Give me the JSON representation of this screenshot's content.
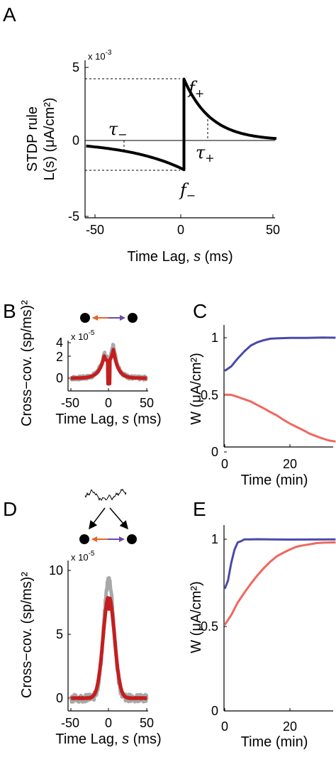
{
  "chart_data": [
    {
      "panel": "A",
      "type": "line",
      "xlabel_text": "Time Lag, ",
      "xlabel_var": "s",
      "xlabel_unit": " (ms)",
      "ylabel_line1": "STDP rule",
      "ylabel_line2": "L(s) (μA/cm²)",
      "multiplier_base": "x 10",
      "multiplier_exp": "-3",
      "xlim": [
        -55,
        50
      ],
      "ylim": [
        -5,
        5
      ],
      "xticks": [
        "-50",
        "0",
        "50"
      ],
      "yticks": [
        "-5",
        "0",
        "5"
      ],
      "f_plus": 4.2,
      "f_minus": -2.0,
      "tau_plus": 15,
      "tau_minus": -33,
      "annotations": {
        "tau_minus_sym": "τ",
        "tau_minus_sub": "−",
        "tau_plus_sym": "τ",
        "tau_plus_sub": "+",
        "f_plus_sym": "f",
        "f_plus_sub": "+",
        "f_minus_sym": "f",
        "f_minus_sub": "−"
      }
    },
    {
      "panel": "B",
      "type": "line",
      "xlabel_text": "Time Lag, ",
      "xlabel_var": "s",
      "xlabel_unit": " (ms)",
      "ylabel": "Cross−cov. (sp/ms)²",
      "multiplier_base": "x 10",
      "multiplier_exp": "-5",
      "xlim": [
        -50,
        50
      ],
      "ylim": [
        -0.8,
        4
      ],
      "xticks": [
        "-50",
        "0",
        "50"
      ],
      "yticks": [
        "0",
        "2",
        "4"
      ],
      "series": [
        {
          "role": "simulation",
          "color": "#a8a8a8",
          "peaks": [
            {
              "x": -5,
              "y": 1.9
            },
            {
              "x": 5,
              "y": 2.8
            }
          ],
          "trough": -0.4
        },
        {
          "role": "theory",
          "color": "#c41e1e",
          "peaks": [
            {
              "x": -5,
              "y": 1.7
            },
            {
              "x": 5,
              "y": 2.3
            }
          ],
          "trough": -0.5
        }
      ]
    },
    {
      "panel": "C",
      "type": "line",
      "xlabel": "Time (min)",
      "ylabel": "W (μA/cm²)",
      "xlim": [
        0,
        34
      ],
      "ylim": [
        0,
        1.05
      ],
      "xticks": [
        "0",
        "20"
      ],
      "yticks": [
        "0",
        "0.5",
        "1"
      ],
      "series": [
        {
          "color": "#4a4aa8",
          "x": [
            0,
            2,
            4,
            6,
            8,
            10,
            12,
            14,
            16,
            20,
            25,
            30,
            34
          ],
          "y": [
            0.71,
            0.75,
            0.82,
            0.88,
            0.93,
            0.96,
            0.98,
            0.99,
            0.995,
            1.0,
            1.0,
            1.0,
            1.0
          ]
        },
        {
          "color": "#f0675e",
          "x": [
            0,
            2,
            4,
            6,
            8,
            10,
            12,
            14,
            16,
            18,
            20,
            22,
            24,
            26,
            28,
            30,
            32,
            34
          ],
          "y": [
            0.5,
            0.5,
            0.48,
            0.46,
            0.44,
            0.41,
            0.38,
            0.35,
            0.32,
            0.28,
            0.25,
            0.22,
            0.19,
            0.16,
            0.14,
            0.12,
            0.1,
            0.09
          ]
        }
      ]
    },
    {
      "panel": "D",
      "type": "line",
      "xlabel_text": "Time Lag, ",
      "xlabel_var": "s",
      "xlabel_unit": " (ms)",
      "ylabel": "Cross−cov. (sp/ms)²",
      "multiplier_base": "x 10",
      "multiplier_exp": "-5",
      "xlim": [
        -50,
        50
      ],
      "ylim": [
        -1,
        10
      ],
      "xticks": [
        "-50",
        "0",
        "50"
      ],
      "yticks": [
        "0",
        "5",
        "10"
      ],
      "series": [
        {
          "role": "simulation",
          "color": "#a8a8a8",
          "peak": 9.3
        },
        {
          "role": "theory",
          "color": "#c41e1e",
          "peaks": [
            {
              "x": -2,
              "y": 7.8
            },
            {
              "x": 3,
              "y": 8.0
            }
          ],
          "dip": 7.0
        }
      ]
    },
    {
      "panel": "E",
      "type": "line",
      "xlabel": "Time (min)",
      "ylabel": "W (μA/cm²)",
      "xlim": [
        0,
        34
      ],
      "ylim": [
        0,
        1.05
      ],
      "xticks": [
        "0",
        "20"
      ],
      "yticks": [
        "0",
        "0.5",
        "1"
      ],
      "series": [
        {
          "color": "#4a4aa8",
          "x": [
            0,
            1,
            2,
            3,
            4,
            5,
            6,
            8,
            10,
            20,
            34
          ],
          "y": [
            0.71,
            0.76,
            0.86,
            0.94,
            0.98,
            0.99,
            1.0,
            1.0,
            1.0,
            1.0,
            1.0
          ]
        },
        {
          "color": "#f0675e",
          "x": [
            0,
            2,
            4,
            6,
            8,
            10,
            12,
            14,
            16,
            18,
            20,
            22,
            24,
            26,
            28,
            30,
            34
          ],
          "y": [
            0.5,
            0.56,
            0.63,
            0.69,
            0.74,
            0.79,
            0.83,
            0.87,
            0.9,
            0.92,
            0.94,
            0.955,
            0.965,
            0.97,
            0.975,
            0.98,
            0.98
          ]
        }
      ]
    }
  ],
  "panels": {
    "a": "A",
    "b": "B",
    "c": "C",
    "d": "D",
    "e": "E"
  },
  "colors": {
    "blue": "#4a4aa8",
    "orange": "#f0675e",
    "red": "#c41e1e",
    "gray": "#a8a8a8",
    "arrow_orange": "#e8632a",
    "arrow_purple": "#6a4aa8"
  }
}
